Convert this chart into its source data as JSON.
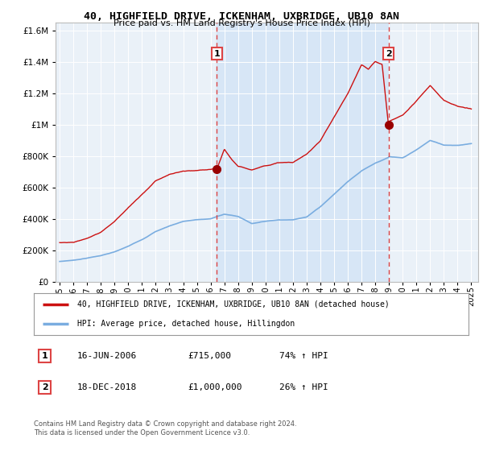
{
  "title1": "40, HIGHFIELD DRIVE, ICKENHAM, UXBRIDGE, UB10 8AN",
  "title2": "Price paid vs. HM Land Registry's House Price Index (HPI)",
  "legend_line1": "40, HIGHFIELD DRIVE, ICKENHAM, UXBRIDGE, UB10 8AN (detached house)",
  "legend_line2": "HPI: Average price, detached house, Hillingdon",
  "annotation1_date": "16-JUN-2006",
  "annotation1_price": "£715,000",
  "annotation1_hpi": "74% ↑ HPI",
  "annotation2_date": "18-DEC-2018",
  "annotation2_price": "£1,000,000",
  "annotation2_hpi": "26% ↑ HPI",
  "footnote1": "Contains HM Land Registry data © Crown copyright and database right 2024.",
  "footnote2": "This data is licensed under the Open Government Licence v3.0.",
  "sale1_x": 2006.46,
  "sale1_y": 715000,
  "sale2_x": 2018.96,
  "sale2_y": 1000000,
  "hpi_line_color": "#7aade0",
  "price_line_color": "#cc1111",
  "sale_dot_color": "#990000",
  "vline_color": "#dd4444",
  "fill_between_color": "#dce8f8",
  "plot_bg": "#eaf1f8",
  "ylim": [
    0,
    1650000
  ],
  "xlim": [
    1994.7,
    2025.5
  ],
  "yticks": [
    0,
    200000,
    400000,
    600000,
    800000,
    1000000,
    1200000,
    1400000,
    1600000
  ],
  "xticks": [
    1995,
    1996,
    1997,
    1998,
    1999,
    2000,
    2001,
    2002,
    2003,
    2004,
    2005,
    2006,
    2007,
    2008,
    2009,
    2010,
    2011,
    2012,
    2013,
    2014,
    2015,
    2016,
    2017,
    2018,
    2019,
    2020,
    2021,
    2022,
    2023,
    2024,
    2025
  ],
  "hpi_anchors_years": [
    1995,
    1996,
    1997,
    1998,
    1999,
    2000,
    2001,
    2002,
    2003,
    2004,
    2005,
    2006,
    2007,
    2008,
    2009,
    2010,
    2011,
    2012,
    2013,
    2014,
    2015,
    2016,
    2017,
    2018,
    2018.96,
    2019,
    2020,
    2021,
    2022,
    2023,
    2024,
    2025
  ],
  "hpi_anchors_vals": [
    130000,
    138000,
    152000,
    168000,
    190000,
    225000,
    268000,
    320000,
    355000,
    385000,
    395000,
    400000,
    430000,
    415000,
    370000,
    385000,
    395000,
    395000,
    415000,
    480000,
    560000,
    640000,
    710000,
    760000,
    795000,
    800000,
    790000,
    840000,
    900000,
    870000,
    870000,
    880000
  ],
  "price_anchors_years": [
    1995,
    1996,
    1997,
    1998,
    1999,
    2000,
    2001,
    2002,
    2003,
    2004,
    2005,
    2006,
    2006.46,
    2007,
    2007.5,
    2008,
    2009,
    2010,
    2011,
    2012,
    2013,
    2014,
    2015,
    2016,
    2017,
    2017.5,
    2018,
    2018.5,
    2018.96,
    2019,
    2020,
    2021,
    2022,
    2023,
    2024,
    2025
  ],
  "price_anchors_vals": [
    250000,
    255000,
    280000,
    320000,
    390000,
    480000,
    560000,
    650000,
    690000,
    710000,
    710000,
    715000,
    715000,
    840000,
    780000,
    730000,
    710000,
    740000,
    760000,
    760000,
    810000,
    900000,
    1050000,
    1200000,
    1380000,
    1350000,
    1400000,
    1380000,
    1000000,
    1020000,
    1060000,
    1150000,
    1250000,
    1160000,
    1120000,
    1100000
  ]
}
